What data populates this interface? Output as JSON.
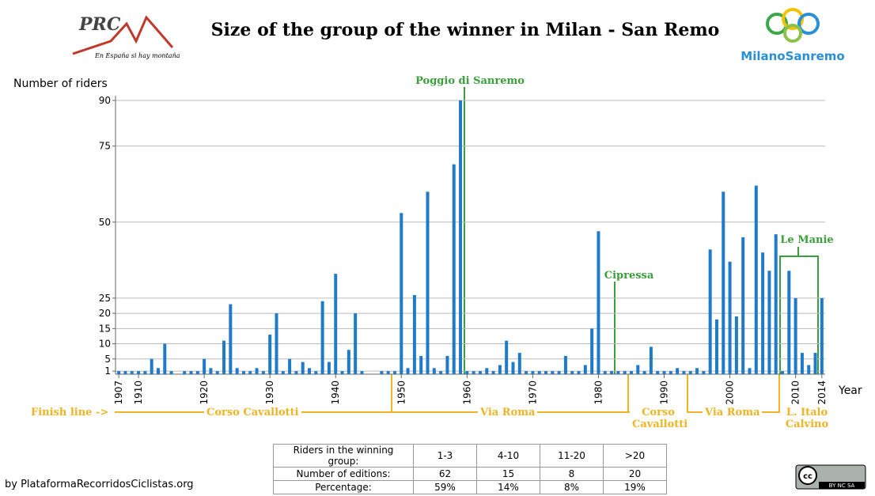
{
  "chart_data": {
    "type": "bar",
    "title": "Size of the group of the winner in Milan - San Remo",
    "ylabel": "Number of riders",
    "xlabel": "Year",
    "x": [
      1907,
      1908,
      1909,
      1910,
      1911,
      1912,
      1913,
      1914,
      1915,
      1916,
      1917,
      1918,
      1919,
      1920,
      1921,
      1922,
      1923,
      1924,
      1925,
      1926,
      1927,
      1928,
      1929,
      1930,
      1931,
      1932,
      1933,
      1934,
      1935,
      1936,
      1937,
      1938,
      1939,
      1940,
      1941,
      1942,
      1943,
      1944,
      1945,
      1946,
      1947,
      1948,
      1949,
      1950,
      1951,
      1952,
      1953,
      1954,
      1955,
      1956,
      1957,
      1958,
      1959,
      1960,
      1961,
      1962,
      1963,
      1964,
      1965,
      1966,
      1967,
      1968,
      1969,
      1970,
      1971,
      1972,
      1973,
      1974,
      1975,
      1976,
      1977,
      1978,
      1979,
      1980,
      1981,
      1982,
      1983,
      1984,
      1985,
      1986,
      1987,
      1988,
      1989,
      1990,
      1991,
      1992,
      1993,
      1994,
      1995,
      1996,
      1997,
      1998,
      1999,
      2000,
      2001,
      2002,
      2003,
      2004,
      2005,
      2006,
      2007,
      2008,
      2009,
      2010,
      2011,
      2012,
      2013,
      2014
    ],
    "values": [
      1,
      1,
      1,
      1,
      1,
      5,
      2,
      10,
      1,
      null,
      1,
      1,
      1,
      5,
      2,
      1,
      11,
      23,
      2,
      1,
      1,
      2,
      1,
      13,
      20,
      1,
      5,
      1,
      4,
      2,
      1,
      24,
      4,
      33,
      1,
      8,
      20,
      1,
      null,
      null,
      1,
      1,
      1,
      53,
      2,
      26,
      6,
      60,
      2,
      1,
      6,
      69,
      90,
      1,
      1,
      1,
      2,
      1,
      3,
      11,
      4,
      7,
      1,
      1,
      1,
      1,
      1,
      1,
      6,
      1,
      1,
      3,
      15,
      47,
      1,
      1,
      1,
      1,
      1,
      3,
      1,
      9,
      1,
      1,
      1,
      2,
      1,
      1,
      2,
      1,
      41,
      18,
      60,
      37,
      19,
      45,
      2,
      62,
      40,
      34,
      46,
      1,
      34,
      25,
      7,
      3,
      7,
      25
    ],
    "color": "#1f7bc9",
    "xlim": [
      1906.5,
      2014.5
    ],
    "xticks": [
      1907,
      1910,
      1920,
      1930,
      1940,
      1950,
      1960,
      1970,
      1980,
      1990,
      2000,
      2010,
      2014
    ],
    "ylim": [
      0,
      90
    ],
    "yticks": [
      1,
      5,
      10,
      15,
      20,
      25,
      50,
      75,
      90
    ],
    "grid": true,
    "annotations": [
      "Poggio di Sanremo",
      "Cipressa",
      "Le Manie"
    ],
    "route_sections": [
      "Finish line ->",
      "Corso Cavallotti",
      "Via Roma",
      "Corso Cavallotti",
      "Via Roma",
      "L. Italo Calvino"
    ]
  },
  "table": {
    "rows": [
      [
        "Riders in the winning group:",
        "1-3",
        "4-10",
        "11-20",
        ">20"
      ],
      [
        "Number of editions:",
        "62",
        "15",
        "8",
        "20"
      ],
      [
        "Percentage:",
        "59%",
        "14%",
        "8%",
        "19%"
      ]
    ]
  },
  "logos": {
    "prc": "PRC",
    "prc_slogan": "En España si hay montaña",
    "milano": "MilanoSanremo",
    "license": "BY NC SA"
  },
  "credit": "by PlataformaRecorridosCiclistas.org"
}
